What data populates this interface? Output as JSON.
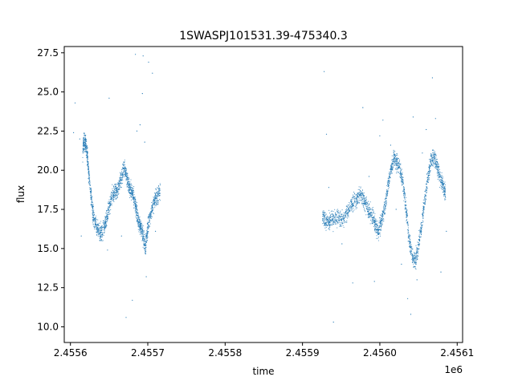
{
  "chart_data": {
    "type": "scatter",
    "title": "1SWASPJ101531.39-475340.3",
    "xlabel": "time",
    "ylabel": "flux",
    "x_offset_label": "1e6",
    "xlim": [
      2455592,
      2456107
    ],
    "ylim": [
      9.0,
      27.9
    ],
    "x_ticks": [
      2455600,
      2455700,
      2455800,
      2455900,
      2456000,
      2456100
    ],
    "x_tick_labels": [
      "2.4556",
      "2.4557",
      "2.4558",
      "2.4559",
      "2.4560",
      "2.4561"
    ],
    "y_ticks": [
      10.0,
      12.5,
      15.0,
      17.5,
      20.0,
      22.5,
      25.0,
      27.5
    ],
    "y_tick_labels": [
      "10.0",
      "12.5",
      "15.0",
      "17.5",
      "20.0",
      "22.5",
      "25.0",
      "27.5"
    ],
    "grid": false,
    "marker_color": "#1f77b4",
    "series": [
      {
        "x": [
          2455616,
          2455618,
          2455620,
          2455622,
          2455624,
          2455627,
          2455630,
          2455634,
          2455638,
          2455642,
          2455646,
          2455650,
          2455654,
          2455658,
          2455662,
          2455666,
          2455670,
          2455673,
          2455676,
          2455679,
          2455682,
          2455685,
          2455688,
          2455691,
          2455694,
          2455697,
          2455700,
          2455704,
          2455708,
          2455712,
          2455716
        ],
        "y": [
          21.3,
          21.9,
          21.6,
          20.9,
          19.6,
          18.2,
          17.0,
          16.3,
          16.0,
          16.1,
          16.8,
          17.6,
          18.4,
          18.6,
          18.8,
          19.6,
          20.2,
          19.5,
          18.9,
          18.7,
          18.3,
          17.4,
          16.8,
          16.4,
          15.8,
          15.0,
          16.4,
          17.2,
          18.0,
          18.4,
          18.6
        ]
      },
      {
        "x": [
          2455926,
          2455930,
          2455935,
          2455940,
          2455946,
          2455952,
          2455958,
          2455964,
          2455970,
          2455975,
          2455980,
          2455985,
          2455990,
          2455994,
          2455998,
          2456002,
          2456006,
          2456010,
          2456014,
          2456018,
          2456022,
          2456026,
          2456030,
          2456034,
          2456038,
          2456042,
          2456046,
          2456050,
          2456054,
          2456058,
          2456062,
          2456066,
          2456070,
          2456074,
          2456078,
          2456082,
          2456085
        ],
        "y": [
          17.1,
          16.9,
          16.7,
          16.8,
          17.0,
          16.9,
          17.3,
          17.8,
          18.2,
          18.5,
          18.0,
          17.5,
          17.0,
          16.6,
          16.0,
          16.7,
          17.6,
          18.8,
          20.0,
          20.8,
          20.5,
          20.0,
          19.2,
          17.5,
          15.5,
          14.5,
          14.2,
          15.2,
          16.5,
          18.0,
          19.5,
          20.6,
          20.9,
          20.3,
          19.4,
          19.0,
          18.6
        ]
      }
    ],
    "outliers": {
      "x": [
        2455604,
        2455606,
        2455612,
        2455614,
        2455648,
        2455650,
        2455666,
        2455672,
        2455680,
        2455684,
        2455686,
        2455690,
        2455693,
        2455694,
        2455696,
        2455698,
        2455701,
        2455706,
        2455710,
        2455928,
        2455931,
        2455934,
        2455940,
        2455951,
        2455965,
        2455978,
        2455986,
        2455993,
        2456000,
        2456004,
        2456014,
        2456021,
        2456028,
        2456036,
        2456040,
        2456043,
        2456048,
        2456055,
        2456060,
        2456068,
        2456072,
        2456079,
        2456086
      ],
      "y": [
        22.4,
        24.3,
        22.0,
        15.8,
        14.9,
        24.6,
        15.8,
        10.6,
        11.7,
        27.4,
        22.5,
        22.9,
        24.9,
        27.3,
        21.8,
        13.2,
        26.9,
        26.2,
        16.1,
        26.3,
        22.3,
        18.9,
        10.3,
        15.3,
        12.8,
        24.0,
        19.6,
        12.9,
        22.2,
        23.2,
        21.6,
        17.5,
        14.0,
        11.8,
        10.8,
        23.4,
        13.0,
        21.1,
        22.6,
        25.9,
        23.3,
        13.5,
        16.1
      ]
    }
  }
}
